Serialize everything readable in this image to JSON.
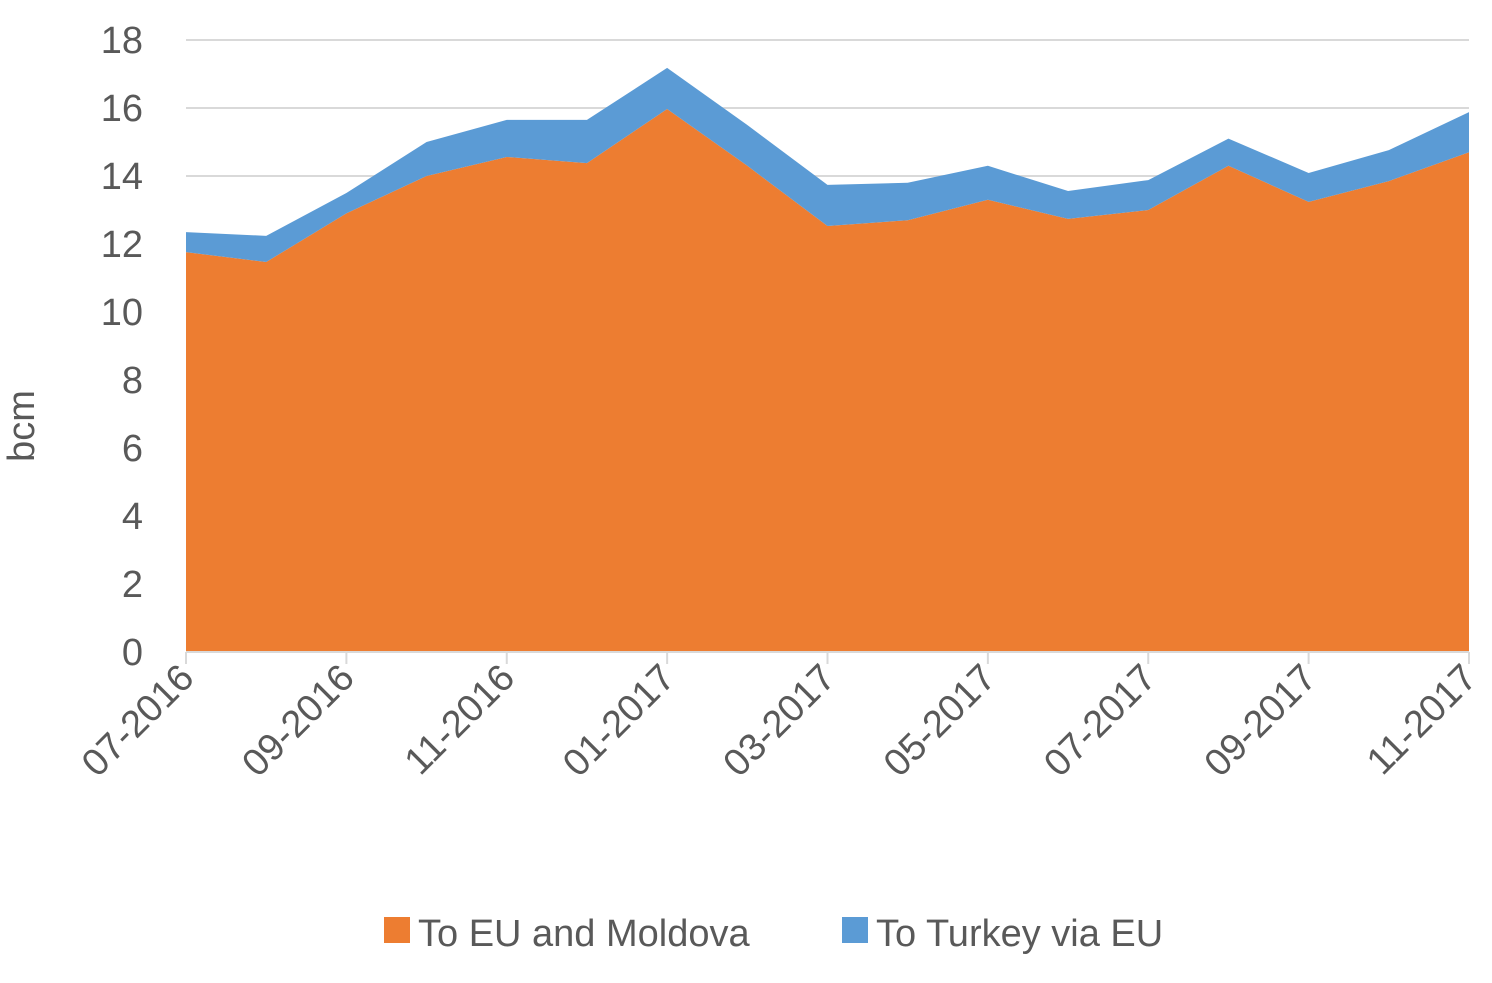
{
  "chart_data": {
    "type": "area",
    "stacked": true,
    "title": "",
    "xlabel": "",
    "ylabel": "bcm",
    "ylim": [
      0,
      18
    ],
    "yticks": [
      0,
      2,
      4,
      6,
      8,
      10,
      12,
      14,
      16,
      18
    ],
    "grid": true,
    "legend": "bottom",
    "categories": [
      "07-2016",
      "08-2016",
      "09-2016",
      "10-2016",
      "11-2016",
      "12-2016",
      "01-2017",
      "02-2017",
      "03-2017",
      "04-2017",
      "05-2017",
      "06-2017",
      "07-2017",
      "08-2017",
      "09-2017",
      "10-2017",
      "11-2017"
    ],
    "tick_labels": [
      "07-2016",
      "09-2016",
      "11-2016",
      "01-2017",
      "03-2017",
      "05-2017",
      "07-2017",
      "09-2017",
      "11-2017"
    ],
    "series": [
      {
        "name": "To EU and Moldova",
        "color": "#ED7D31",
        "values": [
          11.76,
          11.47,
          12.9,
          14.0,
          14.56,
          14.38,
          15.97,
          14.3,
          12.53,
          12.7,
          13.3,
          12.74,
          13.0,
          14.3,
          13.24,
          13.85,
          14.7
        ]
      },
      {
        "name": "To Turkey via EU",
        "color": "#5B9BD5",
        "values": [
          0.59,
          0.77,
          0.6,
          1.0,
          1.09,
          1.27,
          1.21,
          1.2,
          1.21,
          1.1,
          1.0,
          0.82,
          0.88,
          0.8,
          0.85,
          0.91,
          1.18
        ]
      }
    ]
  }
}
